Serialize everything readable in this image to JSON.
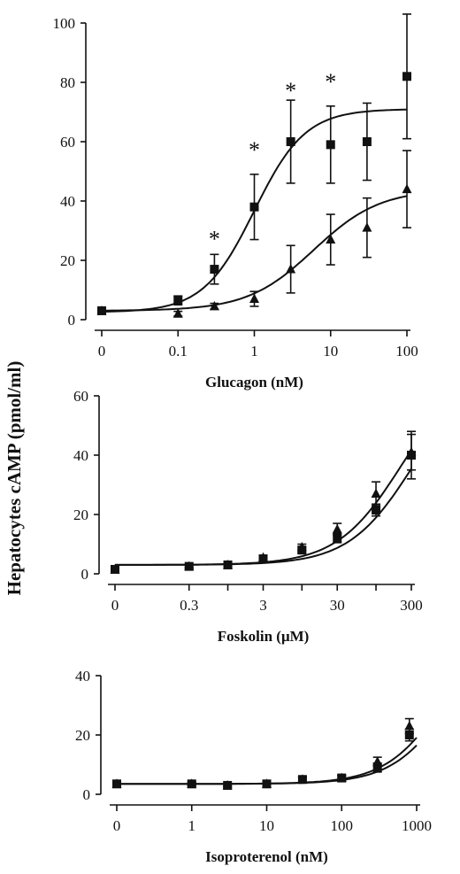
{
  "ylabel": "Hepatocytes cAMP (pmol/ml)",
  "chart_data": [
    {
      "type": "scatter",
      "xlabel": "Glucagon (nM)",
      "x_scale": "log",
      "xlim": [
        0.01,
        100
      ],
      "x_ticks": [
        0.01,
        0.1,
        1,
        10,
        100
      ],
      "x_tick_labels": [
        "0",
        "0.1",
        "1",
        "10",
        "100"
      ],
      "ylim": [
        0,
        100
      ],
      "y_ticks": [
        0,
        20,
        40,
        60,
        80,
        100
      ],
      "fit_curves": true,
      "series": [
        {
          "marker": "square",
          "x": [
            0.01,
            0.1,
            0.3,
            1,
            3,
            10,
            30,
            100
          ],
          "y": [
            3,
            6.5,
            17,
            38,
            60,
            59,
            60,
            82
          ],
          "err": [
            1,
            1.5,
            5,
            11,
            14,
            13,
            13,
            21
          ],
          "fit": {
            "bottom": 2.5,
            "top": 71,
            "ec50": 1.0,
            "hill": 1.3
          }
        },
        {
          "marker": "triangle",
          "x": [
            0.01,
            0.1,
            0.3,
            1,
            3,
            10,
            30,
            100
          ],
          "y": [
            3,
            2,
            4.5,
            7,
            17,
            27,
            31,
            44
          ],
          "err": [
            0.8,
            0.8,
            1,
            2.5,
            8,
            8.5,
            10,
            13
          ],
          "fit": {
            "bottom": 3,
            "top": 44,
            "ec50": 6,
            "hill": 1.0
          }
        }
      ],
      "annotations": [
        {
          "text": "*",
          "x": 0.3,
          "y": 27
        },
        {
          "text": "*",
          "x": 1,
          "y": 57
        },
        {
          "text": "*",
          "x": 3,
          "y": 77
        },
        {
          "text": "*",
          "x": 10,
          "y": 80
        }
      ]
    },
    {
      "type": "scatter",
      "xlabel": "Foskolin (μM)",
      "x_scale": "log",
      "xlim": [
        0.03,
        300
      ],
      "x_ticks": [
        0.03,
        0.3,
        1,
        3,
        10,
        30,
        100,
        300
      ],
      "x_tick_labels": [
        "0",
        "0.3",
        "",
        "3",
        "",
        "30",
        "",
        "300"
      ],
      "ylim": [
        0,
        60
      ],
      "y_ticks": [
        0,
        20,
        40,
        60
      ],
      "fit_curves": true,
      "series": [
        {
          "marker": "square",
          "x": [
            0.03,
            0.3,
            1,
            3,
            10,
            30,
            100,
            300
          ],
          "y": [
            1.5,
            2.5,
            3,
            5,
            8,
            12,
            21.5,
            40
          ],
          "err": [
            0.5,
            0.5,
            0.5,
            0.8,
            1,
            1.5,
            2,
            8
          ],
          "fit": {
            "bottom": 3,
            "top": 70,
            "ec50": 320,
            "hill": 1.0
          }
        },
        {
          "marker": "triangle",
          "x": [
            0.03,
            0.3,
            1,
            3,
            10,
            30,
            100,
            300
          ],
          "y": [
            1.5,
            2.5,
            3,
            5.5,
            9,
            15,
            27,
            41
          ],
          "err": [
            0.5,
            0.5,
            0.5,
            0.8,
            1,
            2,
            4,
            6
          ],
          "fit": {
            "bottom": 3,
            "top": 70,
            "ec50": 220,
            "hill": 1.0
          }
        }
      ]
    },
    {
      "type": "scatter",
      "xlabel": "Isoproterenol (nM)",
      "x_scale": "log",
      "xlim": [
        0.1,
        1000
      ],
      "x_ticks": [
        0.1,
        1,
        10,
        100,
        1000
      ],
      "x_tick_labels": [
        "0",
        "1",
        "10",
        "100",
        "1000"
      ],
      "ylim": [
        0,
        40
      ],
      "y_ticks": [
        0,
        20,
        40
      ],
      "fit_curves": true,
      "series": [
        {
          "marker": "square",
          "x": [
            0.1,
            1,
            3,
            10,
            30,
            100,
            300,
            800
          ],
          "y": [
            3.5,
            3.5,
            3,
            3.5,
            5,
            5.5,
            9,
            20
          ],
          "err": [
            0.5,
            0.5,
            0.5,
            0.5,
            0.8,
            0.8,
            1.5,
            2
          ],
          "fit": {
            "bottom": 3.5,
            "top": 60,
            "ec50": 3000,
            "hill": 1.1
          }
        },
        {
          "marker": "triangle",
          "x": [
            0.1,
            1,
            3,
            10,
            30,
            100,
            300,
            800
          ],
          "y": [
            3.5,
            3.5,
            3,
            3.5,
            5,
            5.5,
            11,
            23
          ],
          "err": [
            0.5,
            0.5,
            0.5,
            0.5,
            0.8,
            0.8,
            1.5,
            2.5
          ],
          "fit": {
            "bottom": 3.5,
            "top": 60,
            "ec50": 2400,
            "hill": 1.1
          }
        }
      ]
    }
  ]
}
